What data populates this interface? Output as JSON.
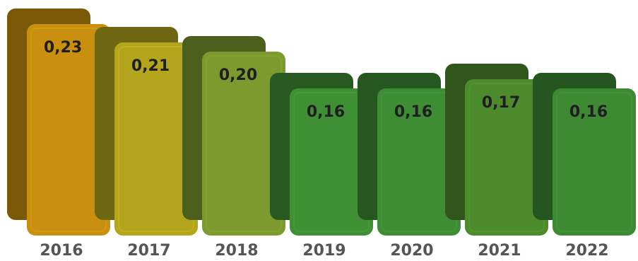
{
  "chart_data": {
    "type": "bar",
    "categories": [
      "2016",
      "2017",
      "2018",
      "2019",
      "2020",
      "2021",
      "2022"
    ],
    "values": [
      0.23,
      0.21,
      0.2,
      0.16,
      0.16,
      0.17,
      0.16
    ],
    "value_labels": [
      "0,23",
      "0,21",
      "0,20",
      "0,16",
      "0,16",
      "0,17",
      "0,16"
    ],
    "title": "",
    "xlabel": "",
    "ylabel": "",
    "ylim": [
      0,
      0.25
    ],
    "grid": false,
    "legend": "none",
    "style": "3d-bars",
    "colors": [
      "#c8900e",
      "#b3a51c",
      "#7c9a2e",
      "#3f8f35",
      "#3e8c34",
      "#4d8a2c",
      "#3d8a33"
    ]
  }
}
